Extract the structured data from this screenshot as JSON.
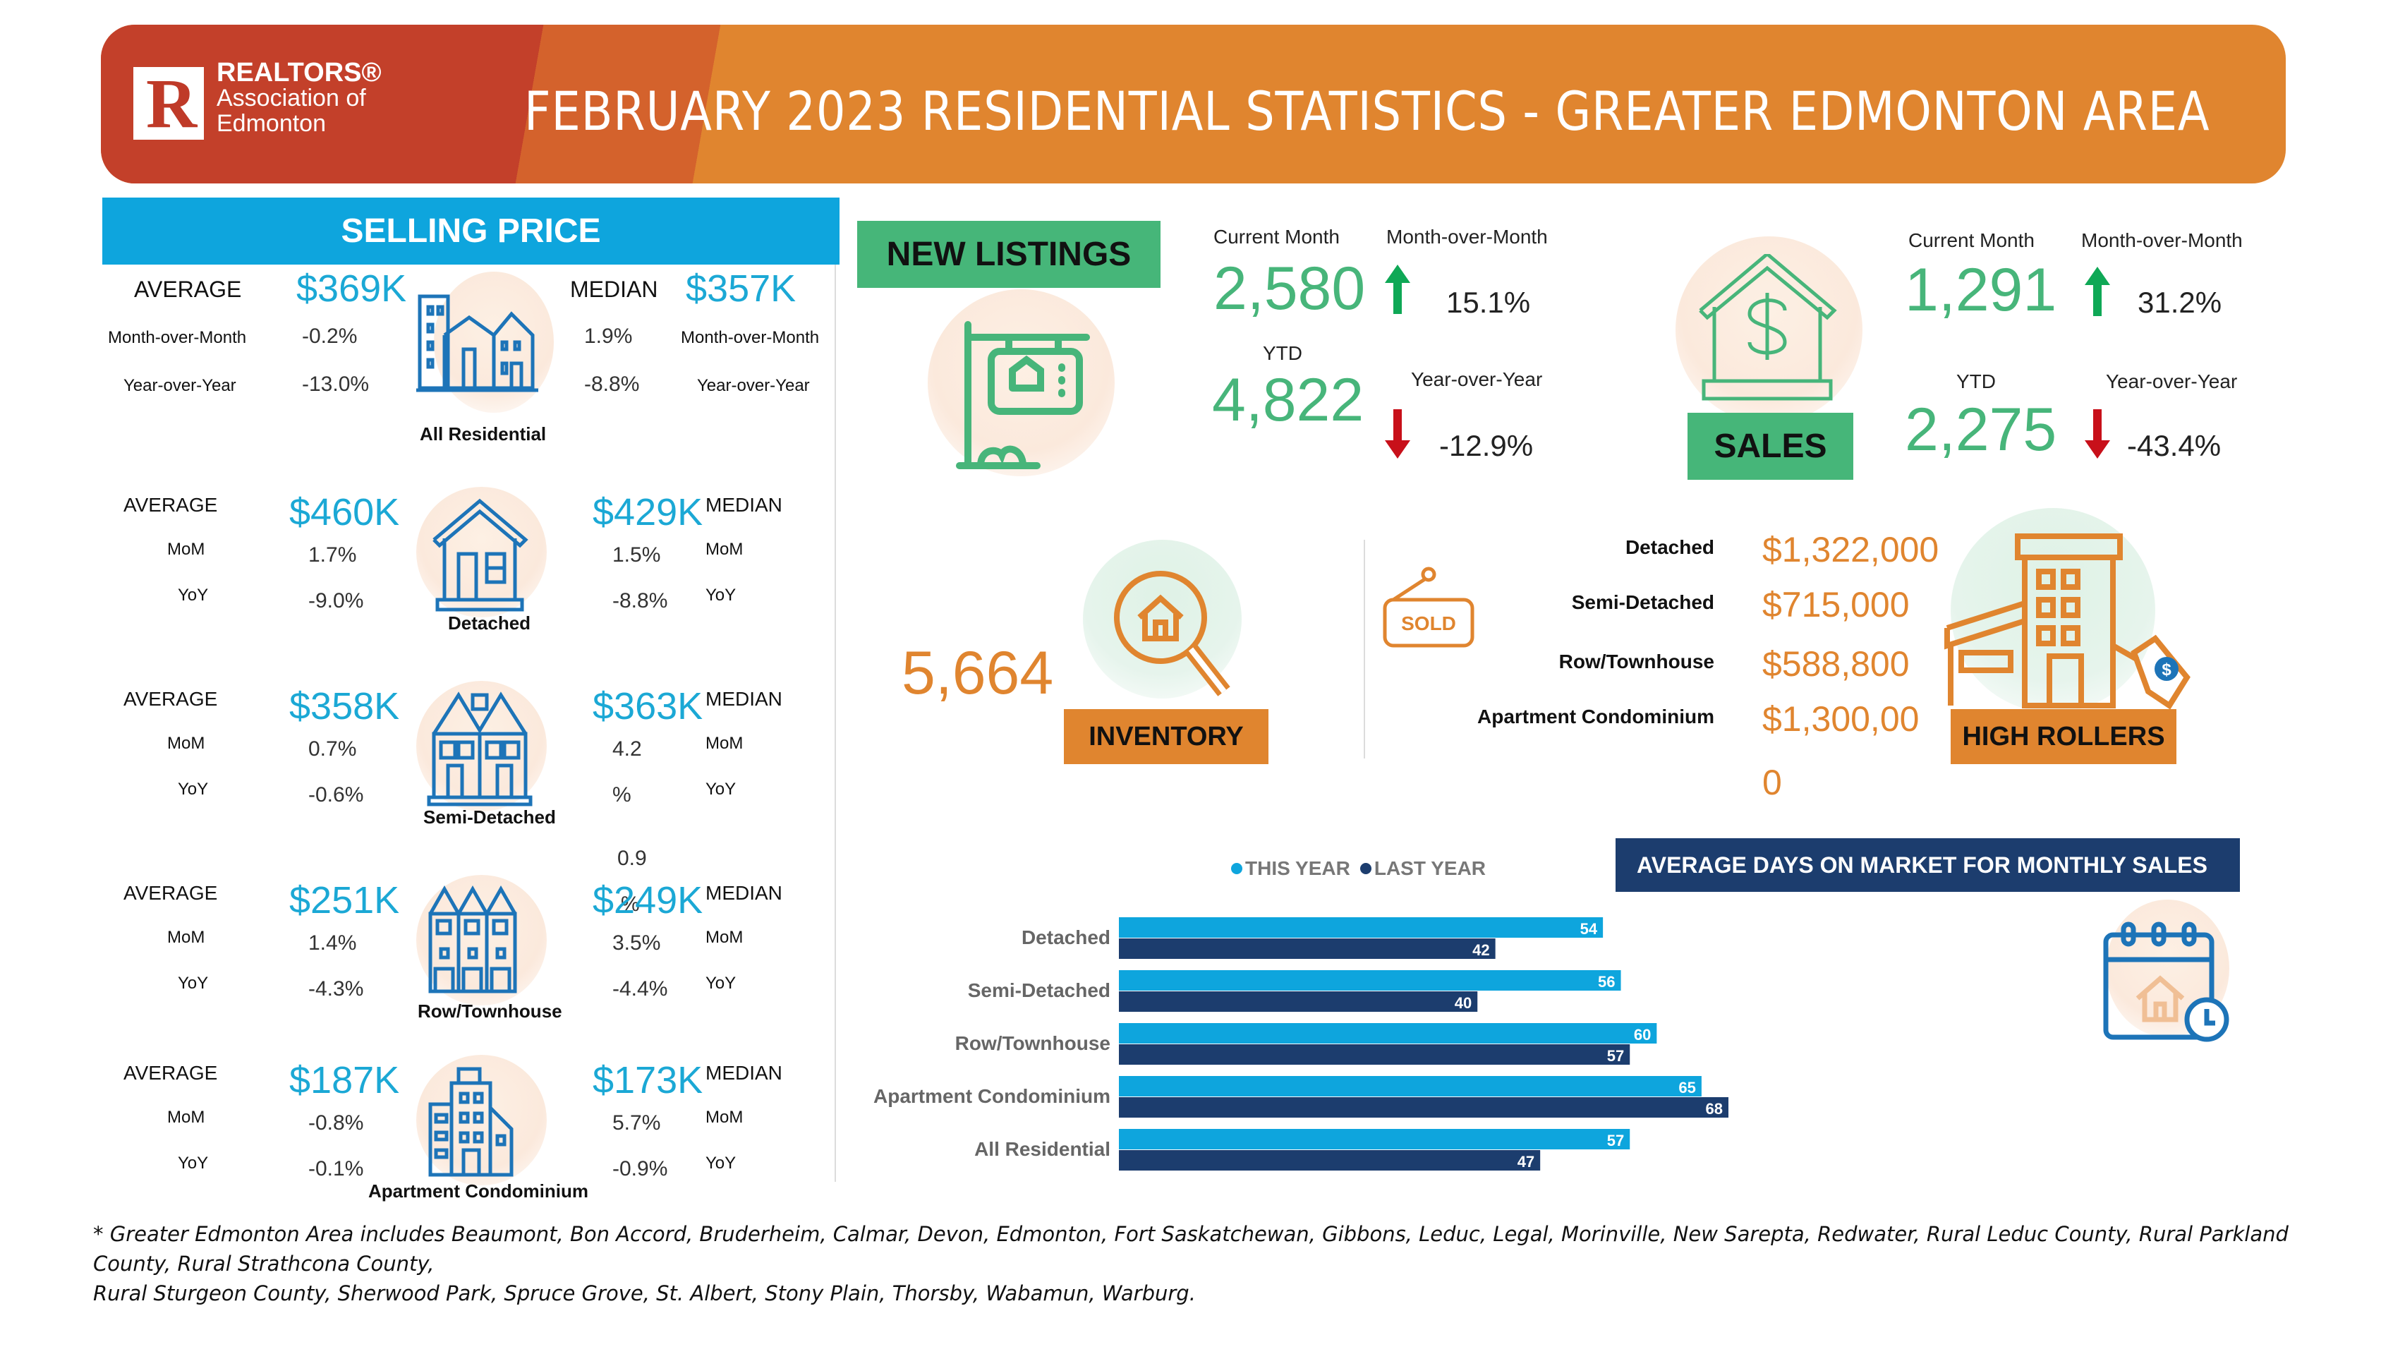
{
  "header": {
    "logo_line1": "REALTORS®",
    "logo_line2": "Association of",
    "logo_line3": "Edmonton",
    "logo_letter": "R",
    "title": "FEBRUARY 2023 RESIDENTIAL STATISTICS - GREATER EDMONTON AREA"
  },
  "colors": {
    "orange": "#e0852f",
    "red": "#bf3a28",
    "blue": "#0ea5dd",
    "green": "#46b679",
    "navy": "#1c3d6e"
  },
  "selling_price": {
    "title": "SELLING PRICE",
    "all_residential": {
      "category": "All Residential",
      "average_label": "AVERAGE",
      "average": "$369K",
      "median_label": "MEDIAN",
      "median": "$357K",
      "mom_label": "Month-over-Month",
      "yoy_label": "Year-over-Year",
      "avg_mom": "-0.2%",
      "avg_yoy": "-13.0%",
      "med_mom": "1.9%",
      "med_yoy": "-8.8%"
    },
    "types": [
      {
        "category": "Detached",
        "average_label": "AVERAGE",
        "average": "$460K",
        "median_label": "MEDIAN",
        "median": "$429K",
        "mom_label": "MoM",
        "yoy_label": "YoY",
        "avg_mom": "1.7%",
        "avg_yoy": "-9.0%",
        "med_mom": "1.5%",
        "med_yoy": "-8.8%"
      },
      {
        "category": "Semi-Detached",
        "average_label": "AVERAGE",
        "average": "$358K",
        "median_label": "MEDIAN",
        "median": "$363K",
        "mom_label": "MoM",
        "yoy_label": "YoY",
        "avg_mom": "0.7%",
        "avg_yoy": "-0.6%",
        "med_mom": "4.2",
        "med_yoy": "%",
        "med_extra1": "0.9",
        "med_extra2": "%"
      },
      {
        "category": "Row/Townhouse",
        "average_label": "AVERAGE",
        "average": "$251K",
        "median_label": "MEDIAN",
        "median": "$249K",
        "mom_label": "MoM",
        "yoy_label": "YoY",
        "avg_mom": "1.4%",
        "avg_yoy": "-4.3%",
        "med_mom": "3.5%",
        "med_yoy": "-4.4%"
      },
      {
        "category": "Apartment Condominium",
        "average_label": "AVERAGE",
        "average": "$187K",
        "median_label": "MEDIAN",
        "median": "$173K",
        "mom_label": "MoM",
        "yoy_label": "YoY",
        "avg_mom": "-0.8%",
        "avg_yoy": "-0.1%",
        "med_mom": "5.7%",
        "med_yoy": "-0.9%"
      }
    ]
  },
  "new_listings": {
    "title": "NEW LISTINGS",
    "current_month_label": "Current Month",
    "current_month": "2,580",
    "mom_label": "Month-over-Month",
    "mom": "15.1%",
    "mom_direction": "up",
    "ytd_label": "YTD",
    "ytd": "4,822",
    "yoy_label": "Year-over-Year",
    "yoy": "-12.9%",
    "yoy_direction": "down"
  },
  "sales": {
    "title": "SALES",
    "current_month_label": "Current Month",
    "current_month": "1,291",
    "mom_label": "Month-over-Month",
    "mom": "31.2%",
    "mom_direction": "up",
    "ytd_label": "YTD",
    "ytd": "2,275",
    "yoy_label": "Year-over-Year",
    "yoy": "-43.4%",
    "yoy_direction": "down"
  },
  "inventory": {
    "title": "INVENTORY",
    "value": "5,664"
  },
  "high_rollers": {
    "title": "HIGH ROLLERS",
    "sold_sign": "SOLD",
    "items": [
      {
        "label": "Detached",
        "value": "$1,322,000"
      },
      {
        "label": "Semi-Detached",
        "value": "$715,000"
      },
      {
        "label": "Row/Townhouse",
        "value": "$588,800"
      },
      {
        "label": "Apartment Condominium",
        "value": "$1,300,00",
        "value_wrap": "0"
      }
    ]
  },
  "chart_data": {
    "type": "bar",
    "orientation": "horizontal",
    "title": "AVERAGE DAYS ON MARKET FOR MONTHLY SALES",
    "categories": [
      "Detached",
      "Semi-Detached",
      "Row/Townhouse",
      "Apartment Condominium",
      "All Residential"
    ],
    "series": [
      {
        "name": "THIS YEAR",
        "color": "#0ea5dd",
        "values": [
          54,
          56,
          60,
          65,
          57
        ]
      },
      {
        "name": "LAST YEAR",
        "color": "#1c3d6e",
        "values": [
          42,
          40,
          57,
          68,
          47
        ]
      }
    ],
    "xlabel": "",
    "ylabel": "",
    "xlim": [
      0,
      68
    ],
    "grid": false,
    "legend": "top-center",
    "data_labels": true
  },
  "footer": {
    "line1": "* Greater Edmonton Area includes Beaumont, Bon Accord, Bruderheim, Calmar, Devon, Edmonton, Fort Saskatchewan, Gibbons, Leduc, Legal, Morinville, New Sarepta, Redwater, Rural Leduc County, Rural Parkland County, Rural Strathcona County,",
    "line2": "Rural Sturgeon County, Sherwood Park, Spruce Grove, St. Albert, Stony Plain, Thorsby, Wabamun, Warburg."
  }
}
